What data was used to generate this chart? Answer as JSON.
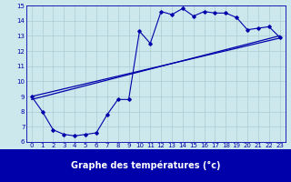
{
  "bg_color": "#cce8ec",
  "grid_color": "#aaccd4",
  "line_color": "#0000aa",
  "xlabel": "Graphe des températures (°c)",
  "xlim": [
    -0.5,
    23.5
  ],
  "ylim": [
    6,
    15
  ],
  "xticks": [
    0,
    1,
    2,
    3,
    4,
    5,
    6,
    7,
    8,
    9,
    10,
    11,
    12,
    13,
    14,
    15,
    16,
    17,
    18,
    19,
    20,
    21,
    22,
    23
  ],
  "yticks": [
    6,
    7,
    8,
    9,
    10,
    11,
    12,
    13,
    14,
    15
  ],
  "series1_x": [
    0,
    1,
    2,
    3,
    4,
    5,
    6,
    7,
    8,
    9,
    10,
    11,
    12,
    13,
    14,
    15,
    16,
    17,
    18,
    19,
    20,
    21,
    22,
    23
  ],
  "series1_y": [
    9.0,
    8.0,
    6.8,
    6.5,
    6.4,
    6.5,
    6.6,
    7.8,
    8.8,
    8.8,
    13.3,
    12.5,
    14.6,
    14.4,
    14.8,
    14.3,
    14.6,
    14.5,
    14.5,
    14.2,
    13.4,
    13.5,
    13.6,
    12.9
  ],
  "series2_x": [
    0,
    23
  ],
  "series2_y": [
    8.8,
    13.0
  ],
  "series3_x": [
    0,
    23
  ],
  "series3_y": [
    9.0,
    12.85
  ],
  "navbar_color": "#0000aa",
  "navbar_text_color": "#ffffff"
}
